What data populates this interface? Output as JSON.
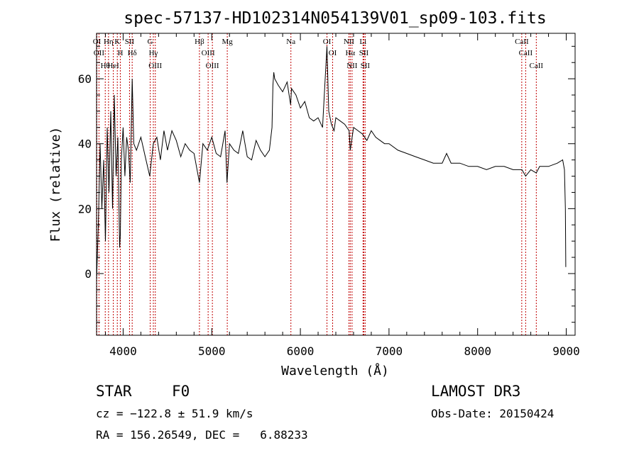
{
  "chart_data": {
    "type": "line",
    "title": "spec-57137-HD102314N054139V01_sp09-103.fits",
    "xlabel": "Wavelength (Å)",
    "ylabel": "Flux (relative)",
    "xlim": [
      3700,
      9100
    ],
    "ylim": [
      -19,
      74
    ],
    "xticks": [
      4000,
      5000,
      6000,
      7000,
      8000,
      9000
    ],
    "yticks": [
      0,
      20,
      40,
      60
    ],
    "grid": false,
    "series": [
      {
        "name": "spectrum",
        "x": [
          3700,
          3720,
          3740,
          3760,
          3780,
          3800,
          3820,
          3840,
          3860,
          3880,
          3900,
          3920,
          3940,
          3960,
          3968,
          3980,
          4000,
          4020,
          4040,
          4060,
          4080,
          4102,
          4120,
          4150,
          4200,
          4250,
          4300,
          4340,
          4380,
          4420,
          4460,
          4500,
          4550,
          4600,
          4650,
          4700,
          4750,
          4800,
          4861,
          4900,
          4950,
          5000,
          5050,
          5100,
          5150,
          5172,
          5200,
          5250,
          5300,
          5350,
          5400,
          5450,
          5500,
          5550,
          5600,
          5650,
          5680,
          5690,
          5700,
          5710,
          5750,
          5800,
          5850,
          5890,
          5900,
          5950,
          6000,
          6050,
          6100,
          6150,
          6200,
          6250,
          6280,
          6300,
          6320,
          6350,
          6380,
          6400,
          6450,
          6500,
          6550,
          6563,
          6600,
          6650,
          6700,
          6750,
          6800,
          6850,
          6900,
          6950,
          7000,
          7100,
          7200,
          7300,
          7400,
          7500,
          7600,
          7650,
          7700,
          7800,
          7900,
          8000,
          8100,
          8200,
          8300,
          8400,
          8500,
          8542,
          8600,
          8662,
          8700,
          8800,
          8900,
          8960,
          8980,
          8990,
          8995
        ],
        "values": [
          -2,
          15,
          40,
          20,
          35,
          10,
          45,
          25,
          50,
          20,
          55,
          30,
          42,
          8,
          12,
          35,
          45,
          30,
          42,
          38,
          28,
          60,
          40,
          38,
          42,
          36,
          30,
          40,
          42,
          35,
          44,
          38,
          44,
          41,
          36,
          40,
          38,
          37,
          28,
          40,
          38,
          42,
          37,
          36,
          44,
          28,
          40,
          38,
          37,
          44,
          36,
          35,
          41,
          38,
          36,
          38,
          45,
          58,
          62,
          60,
          58,
          56,
          59,
          52,
          57,
          55,
          51,
          53,
          48,
          47,
          48,
          45,
          60,
          70,
          50,
          46,
          44,
          48,
          47,
          46,
          44,
          38,
          45,
          44,
          43,
          41,
          44,
          42,
          41,
          40,
          40,
          38,
          37,
          36,
          35,
          34,
          34,
          37,
          34,
          34,
          33,
          33,
          32,
          33,
          33,
          32,
          32,
          30,
          32,
          31,
          33,
          33,
          34,
          35,
          32,
          20,
          2
        ]
      }
    ],
    "line_markers": [
      {
        "label": "OI",
        "x": 3704
      },
      {
        "label": "OII",
        "x": 3727
      },
      {
        "label": "Hθ",
        "x": 3798
      },
      {
        "label": "Hη",
        "x": 3835
      },
      {
        "label": "HeI",
        "x": 3889
      },
      {
        "label": "K",
        "x": 3934
      },
      {
        "label": "H",
        "x": 3968
      },
      {
        "label": "SII",
        "x": 4072
      },
      {
        "label": "Hδ",
        "x": 4102
      },
      {
        "label": "G",
        "x": 4305
      },
      {
        "label": "Hγ",
        "x": 4341
      },
      {
        "label": "OIII",
        "x": 4363
      },
      {
        "label": "Hβ",
        "x": 4861
      },
      {
        "label": "OIII",
        "x": 4959
      },
      {
        "label": "OIII",
        "x": 5007
      },
      {
        "label": "Mg",
        "x": 5175
      },
      {
        "label": "Na",
        "x": 5893
      },
      {
        "label": "OI",
        "x": 6300
      },
      {
        "label": "OI",
        "x": 6364
      },
      {
        "label": "NII",
        "x": 6548
      },
      {
        "label": "Hα",
        "x": 6563
      },
      {
        "label": "NII",
        "x": 6583
      },
      {
        "label": "Li",
        "x": 6707
      },
      {
        "label": "SII",
        "x": 6716
      },
      {
        "label": "SII",
        "x": 6731
      },
      {
        "label": "CaII",
        "x": 8498
      },
      {
        "label": "CaII",
        "x": 8542
      },
      {
        "label": "CaII",
        "x": 8662
      }
    ]
  },
  "info": {
    "class_label": "STAR",
    "subclass": "F0",
    "survey": "LAMOST DR3",
    "cz": "cz = −122.8 ± 51.9 km/s",
    "obs_date": "Obs-Date: 20150424",
    "coords": "RA = 156.26549, DEC =   6.88233"
  }
}
